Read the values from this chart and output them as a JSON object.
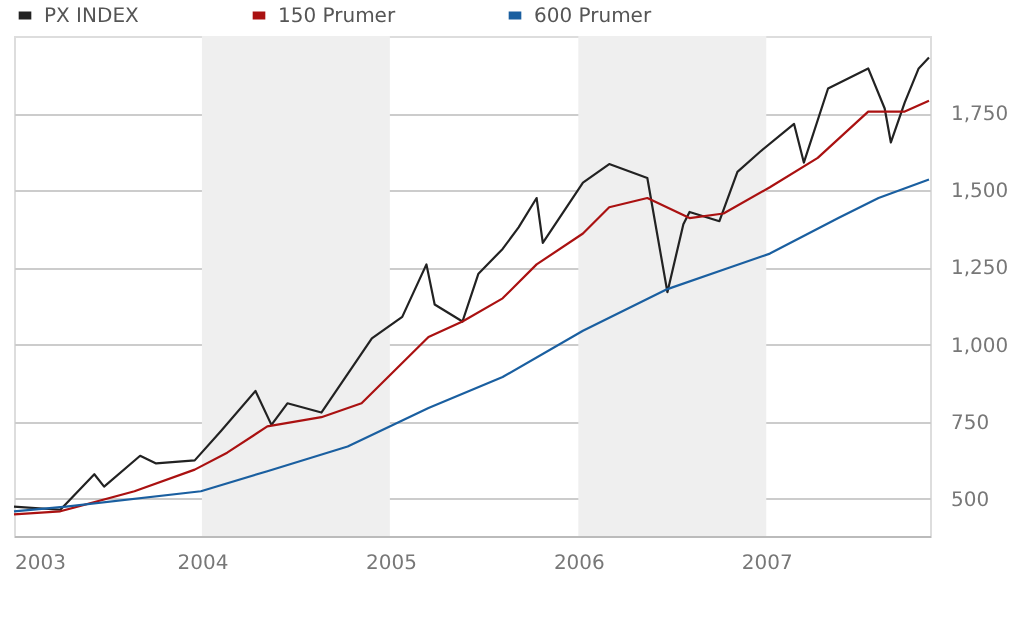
{
  "chart_data": {
    "type": "line",
    "xlim": [
      "2003-01-01",
      "2007-11-15"
    ],
    "xticks": [
      {
        "value": "2003-01-01",
        "label": "2003"
      },
      {
        "value": "2004-01-01",
        "label": "2004"
      },
      {
        "value": "2005-01-01",
        "label": "2005"
      },
      {
        "value": "2006-01-01",
        "label": "2006"
      },
      {
        "value": "2007-01-01",
        "label": "2007"
      }
    ],
    "ylim": [
      380,
      2000
    ],
    "yticks": [
      500,
      750,
      {
        "value": 1000,
        "label": "1,000"
      },
      {
        "value": 1250,
        "label": "1,250"
      },
      {
        "value": 1500,
        "label": "1,500"
      },
      {
        "value": 1750,
        "label": "1,750"
      }
    ],
    "grid": "y",
    "legend": "top left",
    "line_style": "solid",
    "marker": "none",
    "bands": [
      {
        "axis": "x",
        "from": "2004-01-01",
        "to": "2004-12-31",
        "color": "#efefef"
      },
      {
        "axis": "x",
        "from": "2006-01-01",
        "to": "2007-01-01",
        "color": "#efefef"
      }
    ],
    "series": [
      {
        "name": "PX INDEX",
        "color": "#222222",
        "x": [
          "2003-01-01",
          "2003-04-01",
          "2003-06-06",
          "2003-06-25",
          "2003-09-03",
          "2003-10-04",
          "2003-12-18",
          "2004-02-07",
          "2004-04-14",
          "2004-05-15",
          "2004-06-15",
          "2004-08-20",
          "2004-11-26",
          "2005-01-24",
          "2005-03-12",
          "2005-03-28",
          "2005-05-21",
          "2005-06-21",
          "2005-08-07",
          "2005-09-07",
          "2005-10-12",
          "2005-10-24",
          "2006-01-10",
          "2006-03-02",
          "2006-05-15",
          "2006-06-23",
          "2006-07-24",
          "2006-08-05",
          "2006-10-02",
          "2006-11-06",
          "2006-12-20",
          "2007-02-24",
          "2007-03-15",
          "2007-05-01",
          "2007-07-18",
          "2007-08-19",
          "2007-08-31",
          "2007-09-27",
          "2007-10-24",
          "2007-11-13"
        ],
        "values": [
          475,
          465,
          580,
          540,
          640,
          615,
          625,
          720,
          850,
          740,
          810,
          780,
          1020,
          1090,
          1260,
          1130,
          1075,
          1230,
          1310,
          1380,
          1475,
          1330,
          1525,
          1585,
          1540,
          1170,
          1390,
          1430,
          1400,
          1560,
          1625,
          1715,
          1590,
          1830,
          1895,
          1765,
          1655,
          1785,
          1895,
          1930
        ]
      },
      {
        "name": "150 Prumer",
        "color": "#aa1111",
        "x": [
          "2003-01-01",
          "2003-04-01",
          "2003-08-23",
          "2003-12-18",
          "2004-02-19",
          "2004-05-07",
          "2004-08-20",
          "2004-11-06",
          "2005-03-16",
          "2005-05-21",
          "2005-08-07",
          "2005-10-12",
          "2006-01-10",
          "2006-03-02",
          "2006-05-15",
          "2006-08-05",
          "2006-10-10",
          "2007-01-08",
          "2007-04-11",
          "2007-07-18",
          "2007-09-27",
          "2007-11-13"
        ],
        "values": [
          450,
          460,
          525,
          595,
          650,
          735,
          765,
          810,
          1025,
          1075,
          1150,
          1260,
          1360,
          1445,
          1475,
          1410,
          1425,
          1510,
          1605,
          1755,
          1755,
          1790
        ]
      },
      {
        "name": "600 Prumer",
        "color": "#1a5fa0",
        "x": [
          "2003-01-01",
          "2003-04-12",
          "2003-12-30",
          "2004-05-07",
          "2004-10-10",
          "2005-03-16",
          "2005-08-07",
          "2006-01-10",
          "2006-06-23",
          "2006-10-22",
          "2007-01-08",
          "2007-05-21",
          "2007-08-07",
          "2007-11-13"
        ],
        "values": [
          460,
          475,
          525,
          590,
          670,
          795,
          895,
          1045,
          1180,
          1250,
          1295,
          1410,
          1475,
          1535
        ]
      }
    ]
  }
}
